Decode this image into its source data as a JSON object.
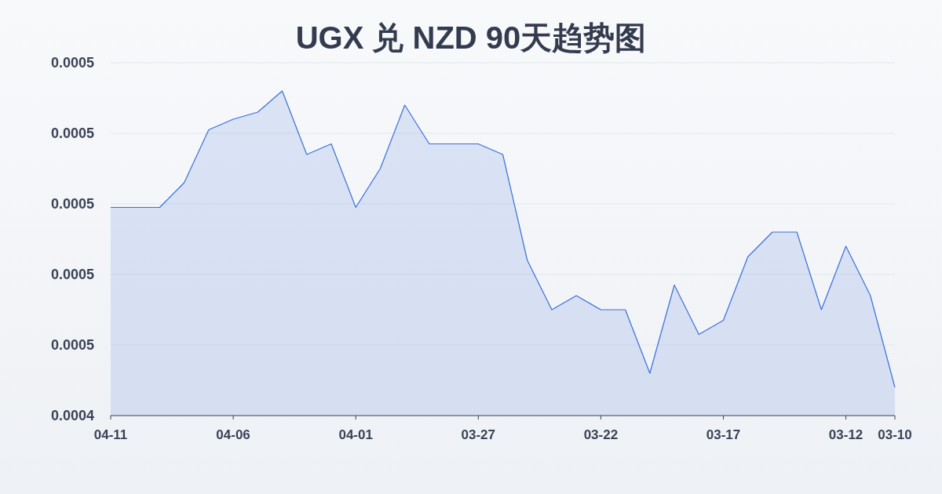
{
  "chart_data": {
    "type": "area",
    "title": "UGX 兑 NZD 90天趋势图",
    "x": [
      "--04-11",
      "--04-10",
      "--04-09",
      "--04-08",
      "--04-07",
      "--04-06",
      "--04-05",
      "--04-04",
      "--04-03",
      "--04-02",
      "--04-01",
      "--03-31",
      "--03-30",
      "--03-29",
      "--03-28",
      "--03-27",
      "--03-26",
      "--03-25",
      "--03-24",
      "--03-23",
      "--03-22",
      "--03-21",
      "--03-20",
      "--03-19",
      "--03-18",
      "--03-17",
      "--03-16",
      "--03-15",
      "--03-14",
      "--03-13",
      "--03-12",
      "--03-11",
      "--03-10"
    ],
    "series": [
      {
        "color": "#3a6fd8",
        "values": [
          0.000499,
          0.000499,
          0.000499,
          0.000506,
          0.000521,
          0.000524,
          0.000526,
          0.000532,
          0.000514,
          0.000517,
          0.000499,
          0.00051,
          0.000528,
          0.000517,
          0.000517,
          0.000517,
          0.000514,
          0.000484,
          0.00047,
          0.000474,
          0.00047,
          0.00047,
          0.000452,
          0.000477,
          0.000463,
          0.000467,
          0.000485,
          0.000492,
          0.000492,
          0.00047,
          0.000488,
          0.000474,
          0.000448
        ]
      }
    ],
    "xlim": [
      "--04-11",
      "--03-10"
    ],
    "xticks": [
      {
        "value": "--04-11",
        "label": "04-11"
      },
      {
        "value": "--04-06",
        "label": "04-06"
      },
      {
        "value": "--04-01",
        "label": "04-01"
      },
      {
        "value": "--03-27",
        "label": "03-27"
      },
      {
        "value": "--03-22",
        "label": "03-22"
      },
      {
        "value": "--03-17",
        "label": "03-17"
      },
      {
        "value": "--03-12",
        "label": "03-12"
      },
      {
        "value": "--03-10",
        "label": "03-10"
      }
    ],
    "ylim": [
      0.00044,
      0.00054
    ],
    "yticks": [
      {
        "value": 0.00044,
        "label": "0.0004"
      },
      {
        "value": 0.00046,
        "label": "0.0005"
      },
      {
        "value": 0.00048,
        "label": "0.0005"
      },
      {
        "value": 0.0005,
        "label": "0.0005"
      },
      {
        "value": 0.00052,
        "label": "0.0005"
      },
      {
        "value": 0.00054,
        "label": "0.0005"
      }
    ],
    "grid": "y"
  }
}
